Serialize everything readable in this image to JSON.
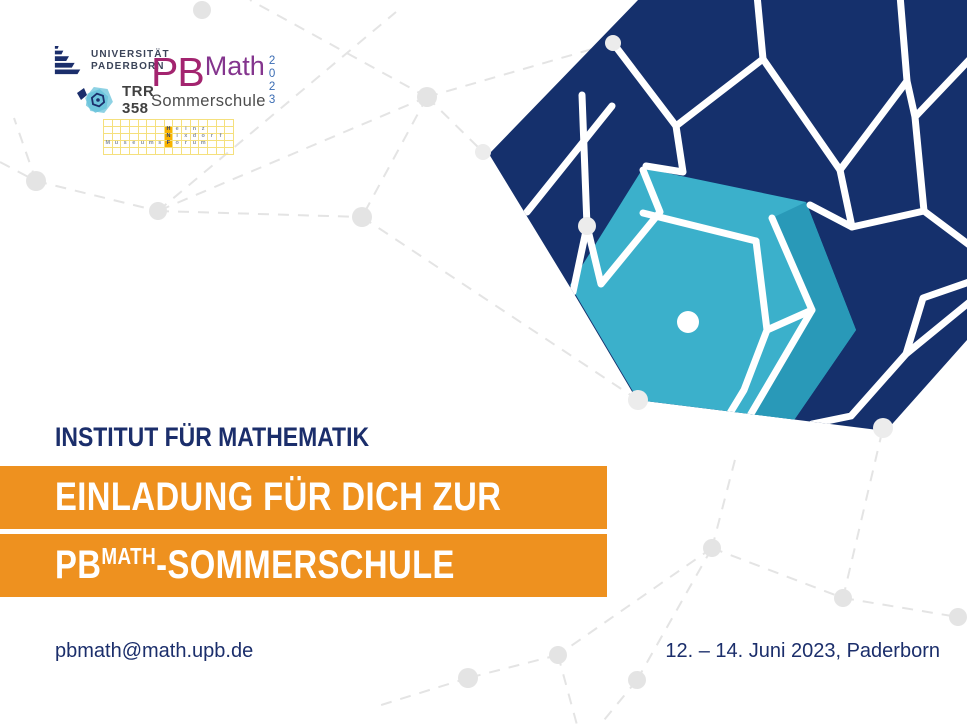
{
  "colors": {
    "navy": "#15306c",
    "textnavy": "#1b2e6b",
    "cyan": "#3bb0cb",
    "cyandark": "#2999b8",
    "orange": "#ee911f",
    "netgray": "#e4e4e4",
    "pbmagenta": "#a3246f",
    "mathpurple": "#84358e",
    "yearblue": "#3a6cb3",
    "sommergray": "#4d4d4d",
    "hnfyellow": "#f5e07d",
    "hnforange": "#f9b200",
    "hnfletter": "#2b3f72"
  },
  "header_logos": {
    "upb": {
      "line1": "UNIVERSITÄT",
      "line2": "PADERBORN"
    },
    "trr": {
      "line1": "TRR",
      "line2": "358"
    },
    "pbmath": {
      "pb": "PB",
      "math": "Math",
      "year_digits": [
        "2",
        "0",
        "2",
        "3"
      ],
      "subtitle": "Sommerschule"
    },
    "hnf": {
      "cols": 15,
      "rows_total": 5,
      "highlight_col": 7,
      "rows": [
        {
          "word": "Heinz",
          "start": 7
        },
        {
          "word": "Nixdorf",
          "start": 7
        },
        {
          "word": "MuseumsForum",
          "start": 0
        }
      ]
    }
  },
  "main": {
    "department": "INSTITUT FÜR MATHEMATIK",
    "headline_line1": "EINLADUNG FÜR DICH ZUR",
    "headline_line2_prefix": "PB",
    "headline_line2_sup": "MATH",
    "headline_line2_suffix": "-SOMMERSCHULE"
  },
  "footer": {
    "email": "pbmath@math.upb.de",
    "date_location": "12. – 14. Juni 2023, Paderborn"
  }
}
